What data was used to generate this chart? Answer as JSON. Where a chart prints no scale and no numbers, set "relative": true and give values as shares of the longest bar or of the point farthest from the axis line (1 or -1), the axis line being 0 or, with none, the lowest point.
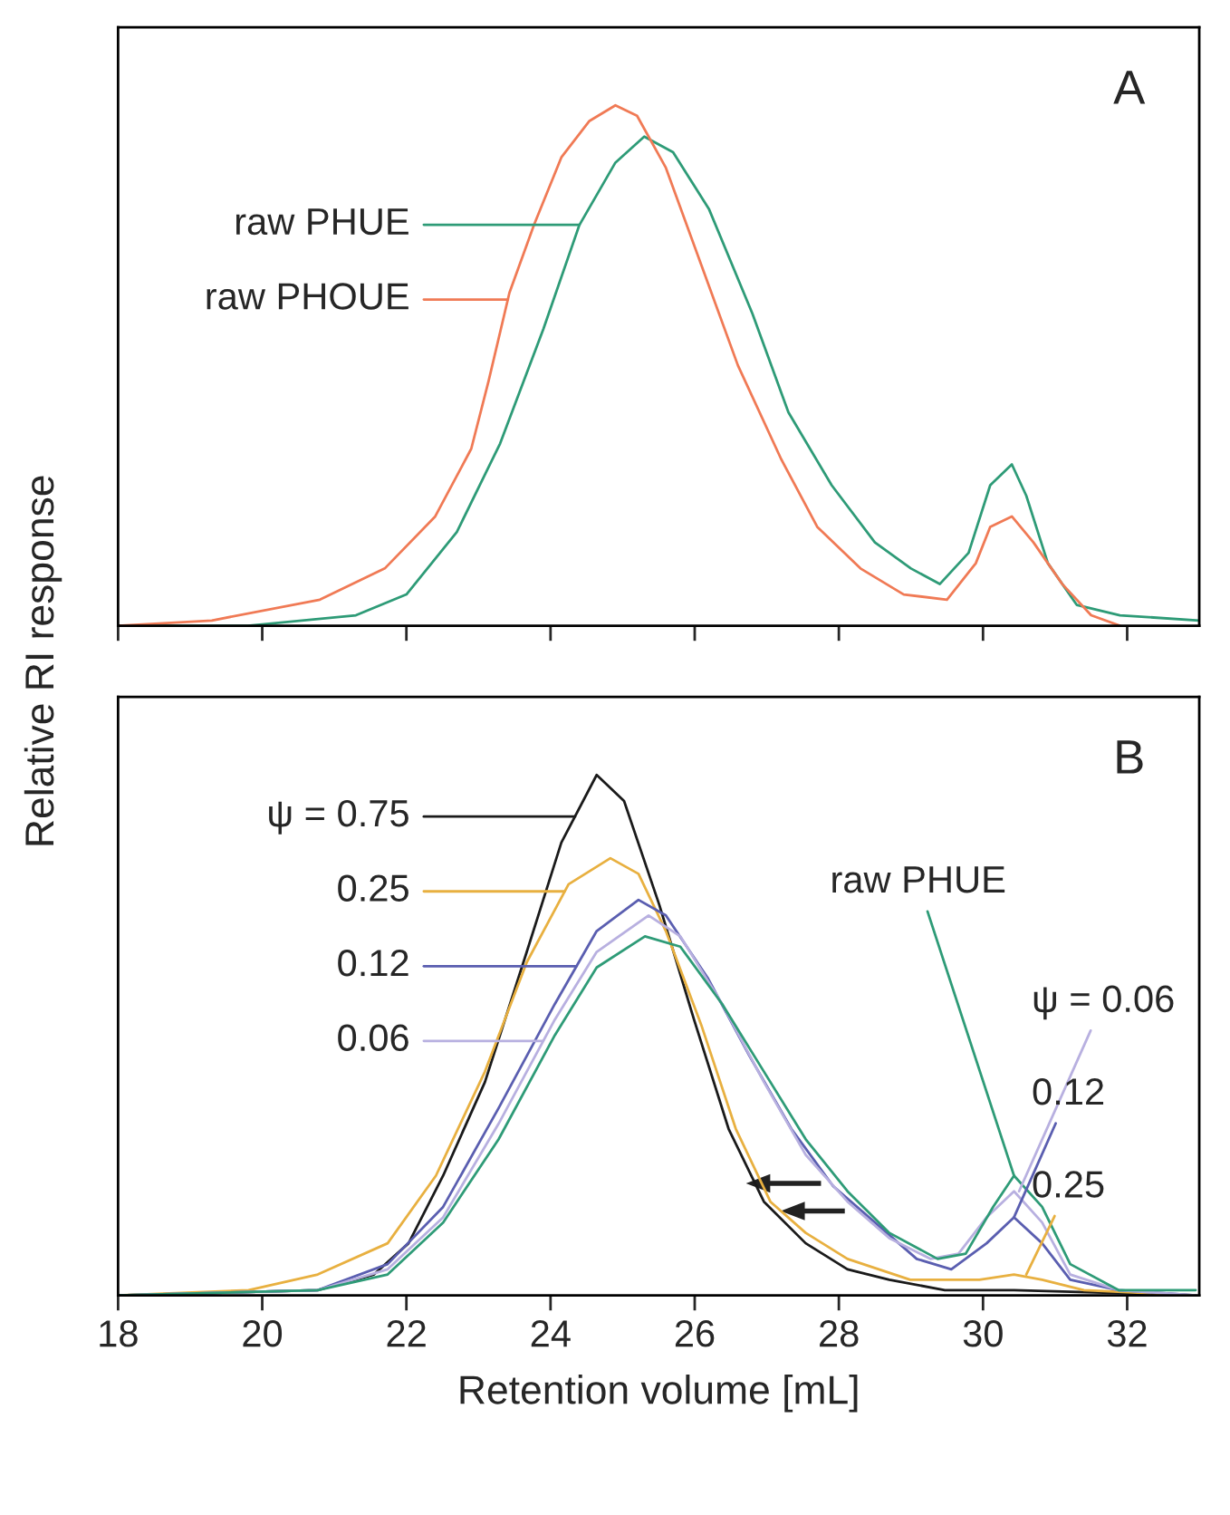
{
  "chart_data": [
    {
      "type": "line",
      "relative": true,
      "ylabel": "Relative RI response",
      "xlim": [
        18,
        33
      ],
      "xticks": [
        {
          "value": 18,
          "label": null
        },
        {
          "value": 20,
          "label": null
        },
        {
          "value": 22,
          "label": null
        },
        {
          "value": 24,
          "label": null
        },
        {
          "value": 26,
          "label": null
        },
        {
          "value": 28,
          "label": null
        },
        {
          "value": 30,
          "label": null
        },
        {
          "value": 32,
          "label": null
        }
      ],
      "tick_labels": false,
      "grid": false,
      "legend": "top left",
      "annotations": [
        "A"
      ],
      "series": [
        {
          "name": "raw PHUE",
          "color": "#2e9b77",
          "x": [
            18,
            19.8,
            21.3,
            22,
            22.7,
            23.3,
            23.9,
            24.4,
            24.9,
            25.3,
            25.7,
            26.2,
            26.8,
            27.3,
            27.9,
            28.5,
            29,
            29.4,
            29.8,
            30.1,
            30.4,
            30.6,
            30.9,
            31.3,
            31.9,
            33
          ],
          "values": [
            0,
            0,
            0.02,
            0.06,
            0.18,
            0.35,
            0.57,
            0.77,
            0.89,
            0.94,
            0.91,
            0.8,
            0.6,
            0.41,
            0.27,
            0.16,
            0.11,
            0.08,
            0.14,
            0.27,
            0.31,
            0.25,
            0.12,
            0.04,
            0.02,
            0.01
          ]
        },
        {
          "name": "raw PHOUE",
          "color": "#f07a55",
          "x": [
            18,
            19.3,
            20.8,
            21.7,
            22.4,
            22.9,
            23.14,
            23.43,
            23.77,
            24.15,
            24.54,
            24.9,
            25.2,
            25.6,
            26.1,
            26.6,
            27.2,
            27.7,
            28.3,
            28.9,
            29.5,
            29.9,
            30.1,
            30.4,
            30.7,
            31.1,
            31.5,
            31.9
          ],
          "values": [
            0,
            0.01,
            0.05,
            0.11,
            0.21,
            0.34,
            0.47,
            0.64,
            0.77,
            0.9,
            0.97,
            1,
            0.98,
            0.88,
            0.69,
            0.5,
            0.32,
            0.19,
            0.11,
            0.06,
            0.05,
            0.12,
            0.19,
            0.21,
            0.16,
            0.08,
            0.02,
            0
          ]
        }
      ]
    },
    {
      "type": "line",
      "relative": true,
      "xlabel": "Retention volume [mL]",
      "xlim": [
        18,
        33
      ],
      "xticks": [
        18,
        20,
        22,
        24,
        26,
        28,
        30,
        32
      ],
      "tick_labels": "x",
      "grid": false,
      "legend": "left",
      "annotations": [
        "B",
        {
          "text": "raw PHUE",
          "x": 30.43,
          "y": 0.23
        },
        {
          "text": "ψ = 0.06",
          "x": 30.5,
          "y": 0.2
        },
        {
          "text": "0.12",
          "x": 30.43,
          "y": 0.15
        },
        {
          "text": "0.25",
          "x": 30.6,
          "y": 0.04
        }
      ],
      "series": [
        {
          "name": "ψ = 0.75",
          "color": "#1a1a1a",
          "x": [
            18,
            20.77,
            21.55,
            22.03,
            22.51,
            23.09,
            23.67,
            24.15,
            24.64,
            25.02,
            25.51,
            25.99,
            26.47,
            26.96,
            27.54,
            28.12,
            28.7,
            29.47,
            30.43,
            32.95
          ],
          "values": [
            0,
            0.01,
            0.04,
            0.1,
            0.23,
            0.41,
            0.66,
            0.87,
            1,
            0.95,
            0.75,
            0.53,
            0.32,
            0.18,
            0.1,
            0.05,
            0.03,
            0.01,
            0.01,
            0
          ]
        },
        {
          "name": "0.25",
          "color": "#e8b040",
          "x": [
            18,
            19.81,
            20.77,
            21.74,
            22.41,
            23.09,
            23.67,
            24.25,
            24.83,
            25.22,
            25.6,
            26.09,
            26.57,
            27.05,
            27.54,
            28.12,
            28.99,
            29.95,
            30.43,
            30.82,
            31.4,
            32.95
          ],
          "values": [
            0,
            0.01,
            0.04,
            0.1,
            0.23,
            0.43,
            0.64,
            0.79,
            0.84,
            0.81,
            0.7,
            0.52,
            0.32,
            0.18,
            0.12,
            0.07,
            0.03,
            0.03,
            0.04,
            0.03,
            0.01,
            0
          ]
        },
        {
          "name": "0.12",
          "color": "#5a5eb0",
          "x": [
            18,
            20.77,
            21.74,
            22.51,
            23.28,
            24.06,
            24.64,
            25.22,
            25.6,
            26.18,
            26.76,
            27.34,
            27.92,
            28.5,
            29.08,
            29.56,
            30.05,
            30.43,
            30.82,
            31.21,
            31.88,
            32.95
          ],
          "values": [
            0,
            0.01,
            0.06,
            0.17,
            0.36,
            0.56,
            0.7,
            0.76,
            0.73,
            0.61,
            0.46,
            0.32,
            0.21,
            0.14,
            0.07,
            0.05,
            0.1,
            0.15,
            0.1,
            0.03,
            0.01,
            0
          ]
        },
        {
          "name": "0.06",
          "color": "#b8b0e0",
          "x": [
            18,
            20.77,
            21.74,
            22.51,
            23.28,
            24.06,
            24.64,
            25.36,
            25.8,
            26.38,
            26.96,
            27.54,
            28.12,
            28.7,
            29.27,
            29.66,
            30.05,
            30.43,
            30.82,
            31.21,
            31.88,
            32.95
          ],
          "values": [
            0,
            0.01,
            0.05,
            0.15,
            0.33,
            0.53,
            0.66,
            0.73,
            0.69,
            0.56,
            0.41,
            0.27,
            0.18,
            0.11,
            0.07,
            0.08,
            0.15,
            0.2,
            0.14,
            0.04,
            0.01,
            0
          ]
        },
        {
          "color": "#2e9b77",
          "x": [
            18,
            20.77,
            21.74,
            22.51,
            23.28,
            24.06,
            24.64,
            25.31,
            25.8,
            26.38,
            26.96,
            27.54,
            28.12,
            28.7,
            29.37,
            29.76,
            30.14,
            30.43,
            30.82,
            31.21,
            31.88,
            32.95
          ],
          "values": [
            0,
            0.01,
            0.04,
            0.14,
            0.3,
            0.5,
            0.63,
            0.69,
            0.67,
            0.56,
            0.43,
            0.3,
            0.2,
            0.12,
            0.07,
            0.08,
            0.17,
            0.23,
            0.17,
            0.06,
            0.01,
            0.01
          ]
        }
      ]
    }
  ]
}
